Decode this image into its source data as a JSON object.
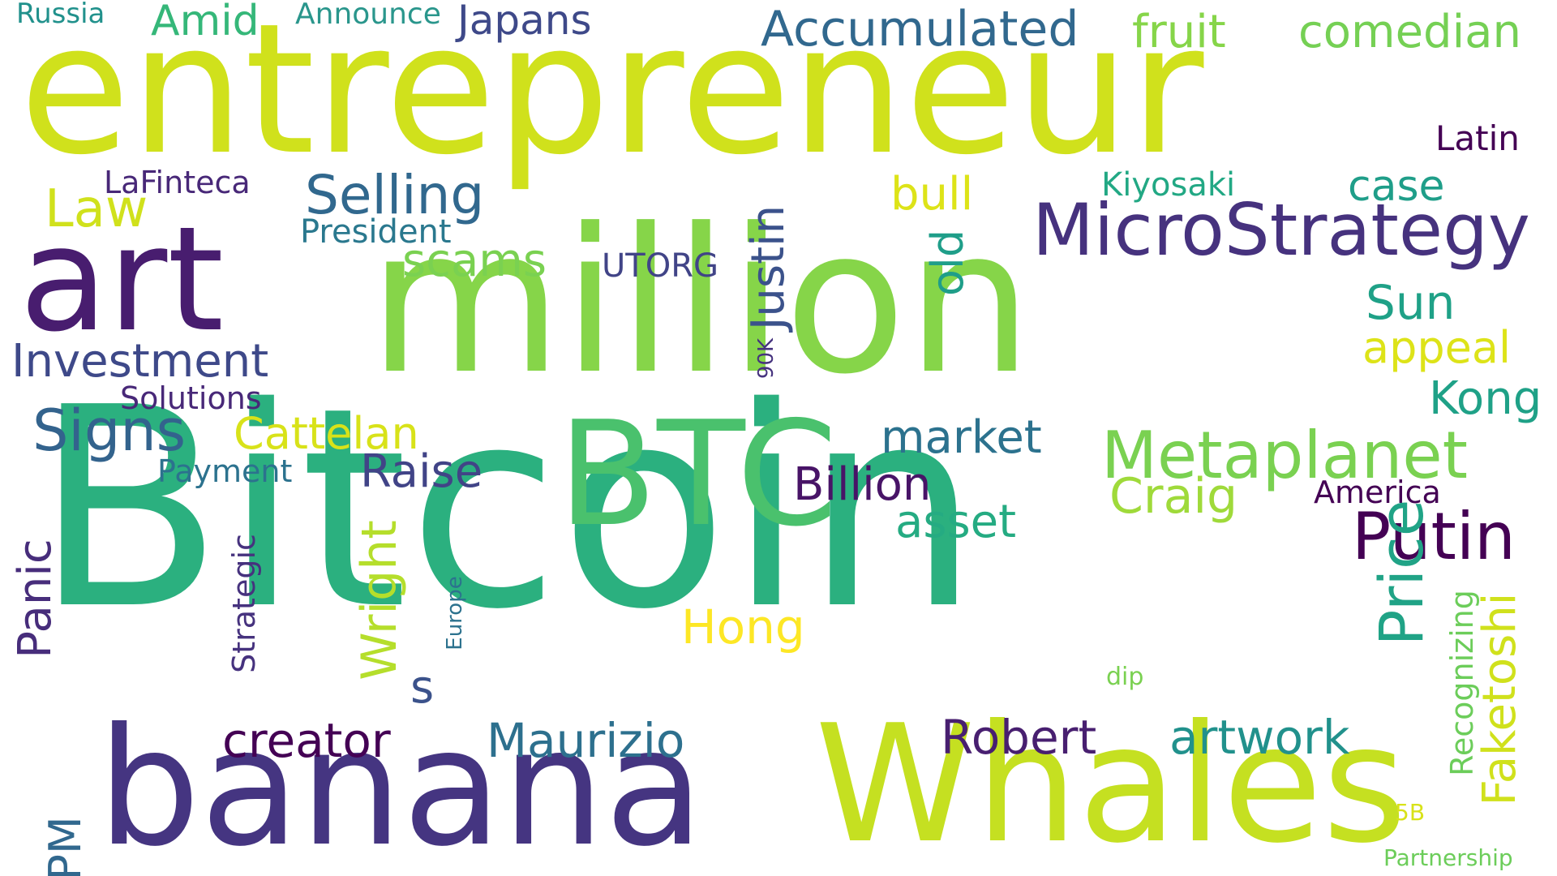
{
  "words": [
    {
      "text": "Bitcoin",
      "color": "#2bb07f"
    },
    {
      "text": "million",
      "color": "#86d549"
    },
    {
      "text": "entrepreneur",
      "color": "#d0e11c"
    },
    {
      "text": "banana",
      "color": "#453581"
    },
    {
      "text": "Whales",
      "color": "#c5e021"
    },
    {
      "text": "art",
      "color": "#481d6f"
    },
    {
      "text": "BTC",
      "color": "#4ac16d"
    },
    {
      "text": "MicroStrategy",
      "color": "#46327e"
    },
    {
      "text": "Metaplanet",
      "color": "#7ad151"
    },
    {
      "text": "Putin",
      "color": "#440154"
    },
    {
      "text": "Price",
      "color": "#20a386"
    },
    {
      "text": "Signs",
      "color": "#33638d"
    },
    {
      "text": "Accumulated",
      "color": "#31688e"
    },
    {
      "text": "comedian",
      "color": "#75d054"
    },
    {
      "text": "fruit",
      "color": "#86d549"
    },
    {
      "text": "Japans",
      "color": "#3e4989"
    },
    {
      "text": "Amid",
      "color": "#35b779"
    },
    {
      "text": "Announce",
      "color": "#2a968c"
    },
    {
      "text": "Russia",
      "color": "#21918c"
    },
    {
      "text": "Latin",
      "color": "#440154"
    },
    {
      "text": "LaFinteca",
      "color": "#482878"
    },
    {
      "text": "Law",
      "color": "#d0e11c"
    },
    {
      "text": "Selling",
      "color": "#31688e"
    },
    {
      "text": "President",
      "color": "#2a788e"
    },
    {
      "text": "bull",
      "color": "#dde318"
    },
    {
      "text": "Kiyosaki",
      "color": "#22a884"
    },
    {
      "text": "case",
      "color": "#1f9e89"
    },
    {
      "text": "Justin",
      "color": "#3b528b"
    },
    {
      "text": "old",
      "color": "#1f9e89"
    },
    {
      "text": "scams",
      "color": "#7ad151"
    },
    {
      "text": "UTORG",
      "color": "#414487"
    },
    {
      "text": "Sun",
      "color": "#1fa187"
    },
    {
      "text": "appeal",
      "color": "#dde318"
    },
    {
      "text": "Investment",
      "color": "#3e4989"
    },
    {
      "text": "Solutions",
      "color": "#482878"
    },
    {
      "text": "90K",
      "color": "#46337e"
    },
    {
      "text": "Kong",
      "color": "#1fa187"
    },
    {
      "text": "Cattelan",
      "color": "#d8e219"
    },
    {
      "text": "market",
      "color": "#2c728e"
    },
    {
      "text": "Payment",
      "color": "#2c728e"
    },
    {
      "text": "Raise",
      "color": "#414487"
    },
    {
      "text": "Billion",
      "color": "#481467"
    },
    {
      "text": "Craig",
      "color": "#9fda3a"
    },
    {
      "text": "America",
      "color": "#440154"
    },
    {
      "text": "asset",
      "color": "#25ab82"
    },
    {
      "text": "Panic",
      "color": "#472d7b"
    },
    {
      "text": "Strategic",
      "color": "#46327e"
    },
    {
      "text": "Wright",
      "color": "#b5de2b"
    },
    {
      "text": "Europe",
      "color": "#2c728e"
    },
    {
      "text": "Hong",
      "color": "#fde725"
    },
    {
      "text": "s",
      "color": "#3b528b"
    },
    {
      "text": "Recognizing",
      "color": "#6ccd5a"
    },
    {
      "text": "Faketoshi",
      "color": "#d0e11c"
    },
    {
      "text": "dip",
      "color": "#7ad151"
    },
    {
      "text": "creator",
      "color": "#440154"
    },
    {
      "text": "Maurizio",
      "color": "#2d708e"
    },
    {
      "text": "Robert",
      "color": "#481f70"
    },
    {
      "text": "artwork",
      "color": "#21918c"
    },
    {
      "text": "JPM",
      "color": "#31688e"
    },
    {
      "text": "5B",
      "color": "#d8e219"
    },
    {
      "text": "Partnership",
      "color": "#6ccd5a"
    }
  ]
}
